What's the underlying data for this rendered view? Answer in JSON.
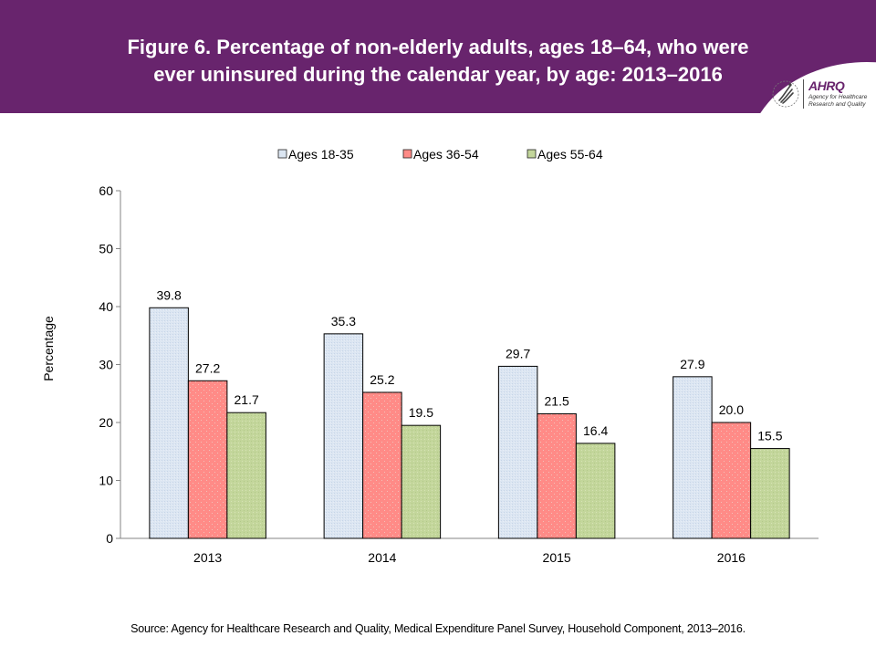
{
  "header": {
    "title_line1": "Figure 6. Percentage of non-elderly adults, ages 18–64, who were",
    "title_line2": "ever uninsured during the calendar year, by age: 2013–2016",
    "background_color": "#68246d"
  },
  "logo": {
    "name": "AHRQ",
    "subtitle_line1": "Agency for Healthcare",
    "subtitle_line2": "Research and Quality",
    "icon": "hhs-eagle-icon"
  },
  "source": "Source: Agency for Healthcare Research and Quality, Medical Expenditure Panel Survey, Household Component, 2013–2016.",
  "chart_data": {
    "type": "bar",
    "title": "Figure 6. Percentage of non-elderly adults, ages 18–64, who were ever uninsured during the calendar year, by age: 2013–2016",
    "xlabel": "",
    "ylabel": "Percentage",
    "ylim": [
      0,
      60
    ],
    "yticks": [
      0,
      10,
      20,
      30,
      40,
      50,
      60
    ],
    "grid": false,
    "legend_position": "top-center",
    "categories": [
      "2013",
      "2014",
      "2015",
      "2016"
    ],
    "series": [
      {
        "name": "Ages 18-35",
        "color": "#dce6f2",
        "values": [
          39.8,
          35.3,
          29.7,
          27.9
        ]
      },
      {
        "name": "Ages 36-54",
        "color": "#ff8b87",
        "values": [
          27.2,
          25.2,
          21.5,
          20.0
        ]
      },
      {
        "name": "Ages 55-64",
        "color": "#c3d69b",
        "values": [
          21.7,
          19.5,
          16.4,
          15.5
        ]
      }
    ],
    "data_labels": [
      [
        "39.8",
        "35.3",
        "29.7",
        "27.9"
      ],
      [
        "27.2",
        "25.2",
        "21.5",
        "20.0"
      ],
      [
        "21.7",
        "19.5",
        "16.4",
        "15.5"
      ]
    ]
  }
}
